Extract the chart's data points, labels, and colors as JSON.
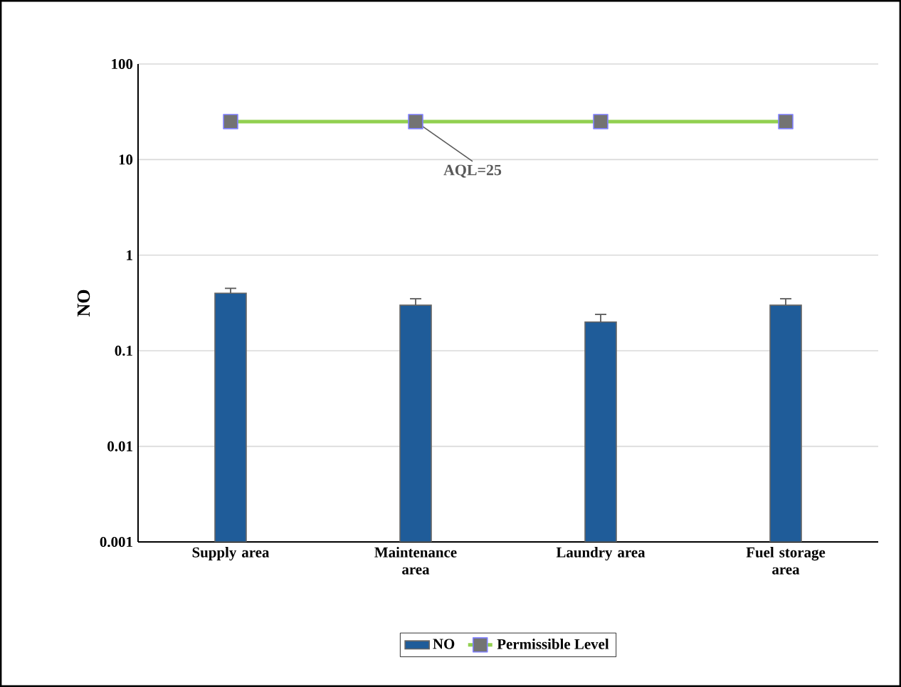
{
  "chart_data": {
    "type": "bar",
    "ylabel": "NO",
    "categories": [
      "Supply area",
      "Maintenance area",
      "Laundry area",
      "Fuel storage area"
    ],
    "series": [
      {
        "name": "NO",
        "color": "#1f5c99",
        "values": [
          0.4,
          0.3,
          0.2,
          0.3
        ],
        "errors": [
          0.05,
          0.05,
          0.04,
          0.05
        ]
      },
      {
        "name": "Permissible Level",
        "type": "line",
        "color": "#92d050",
        "values": [
          25,
          25,
          25,
          25
        ],
        "marker": "square"
      }
    ],
    "log": "y",
    "ylim": [
      0.001,
      100
    ],
    "yticks": [
      0.001,
      0.01,
      0.1,
      1,
      10,
      100
    ],
    "grid": "y",
    "legend": "bottom",
    "annotations": [
      {
        "text": "AQL=25",
        "x": "Maintenance area",
        "y": 25
      }
    ]
  }
}
